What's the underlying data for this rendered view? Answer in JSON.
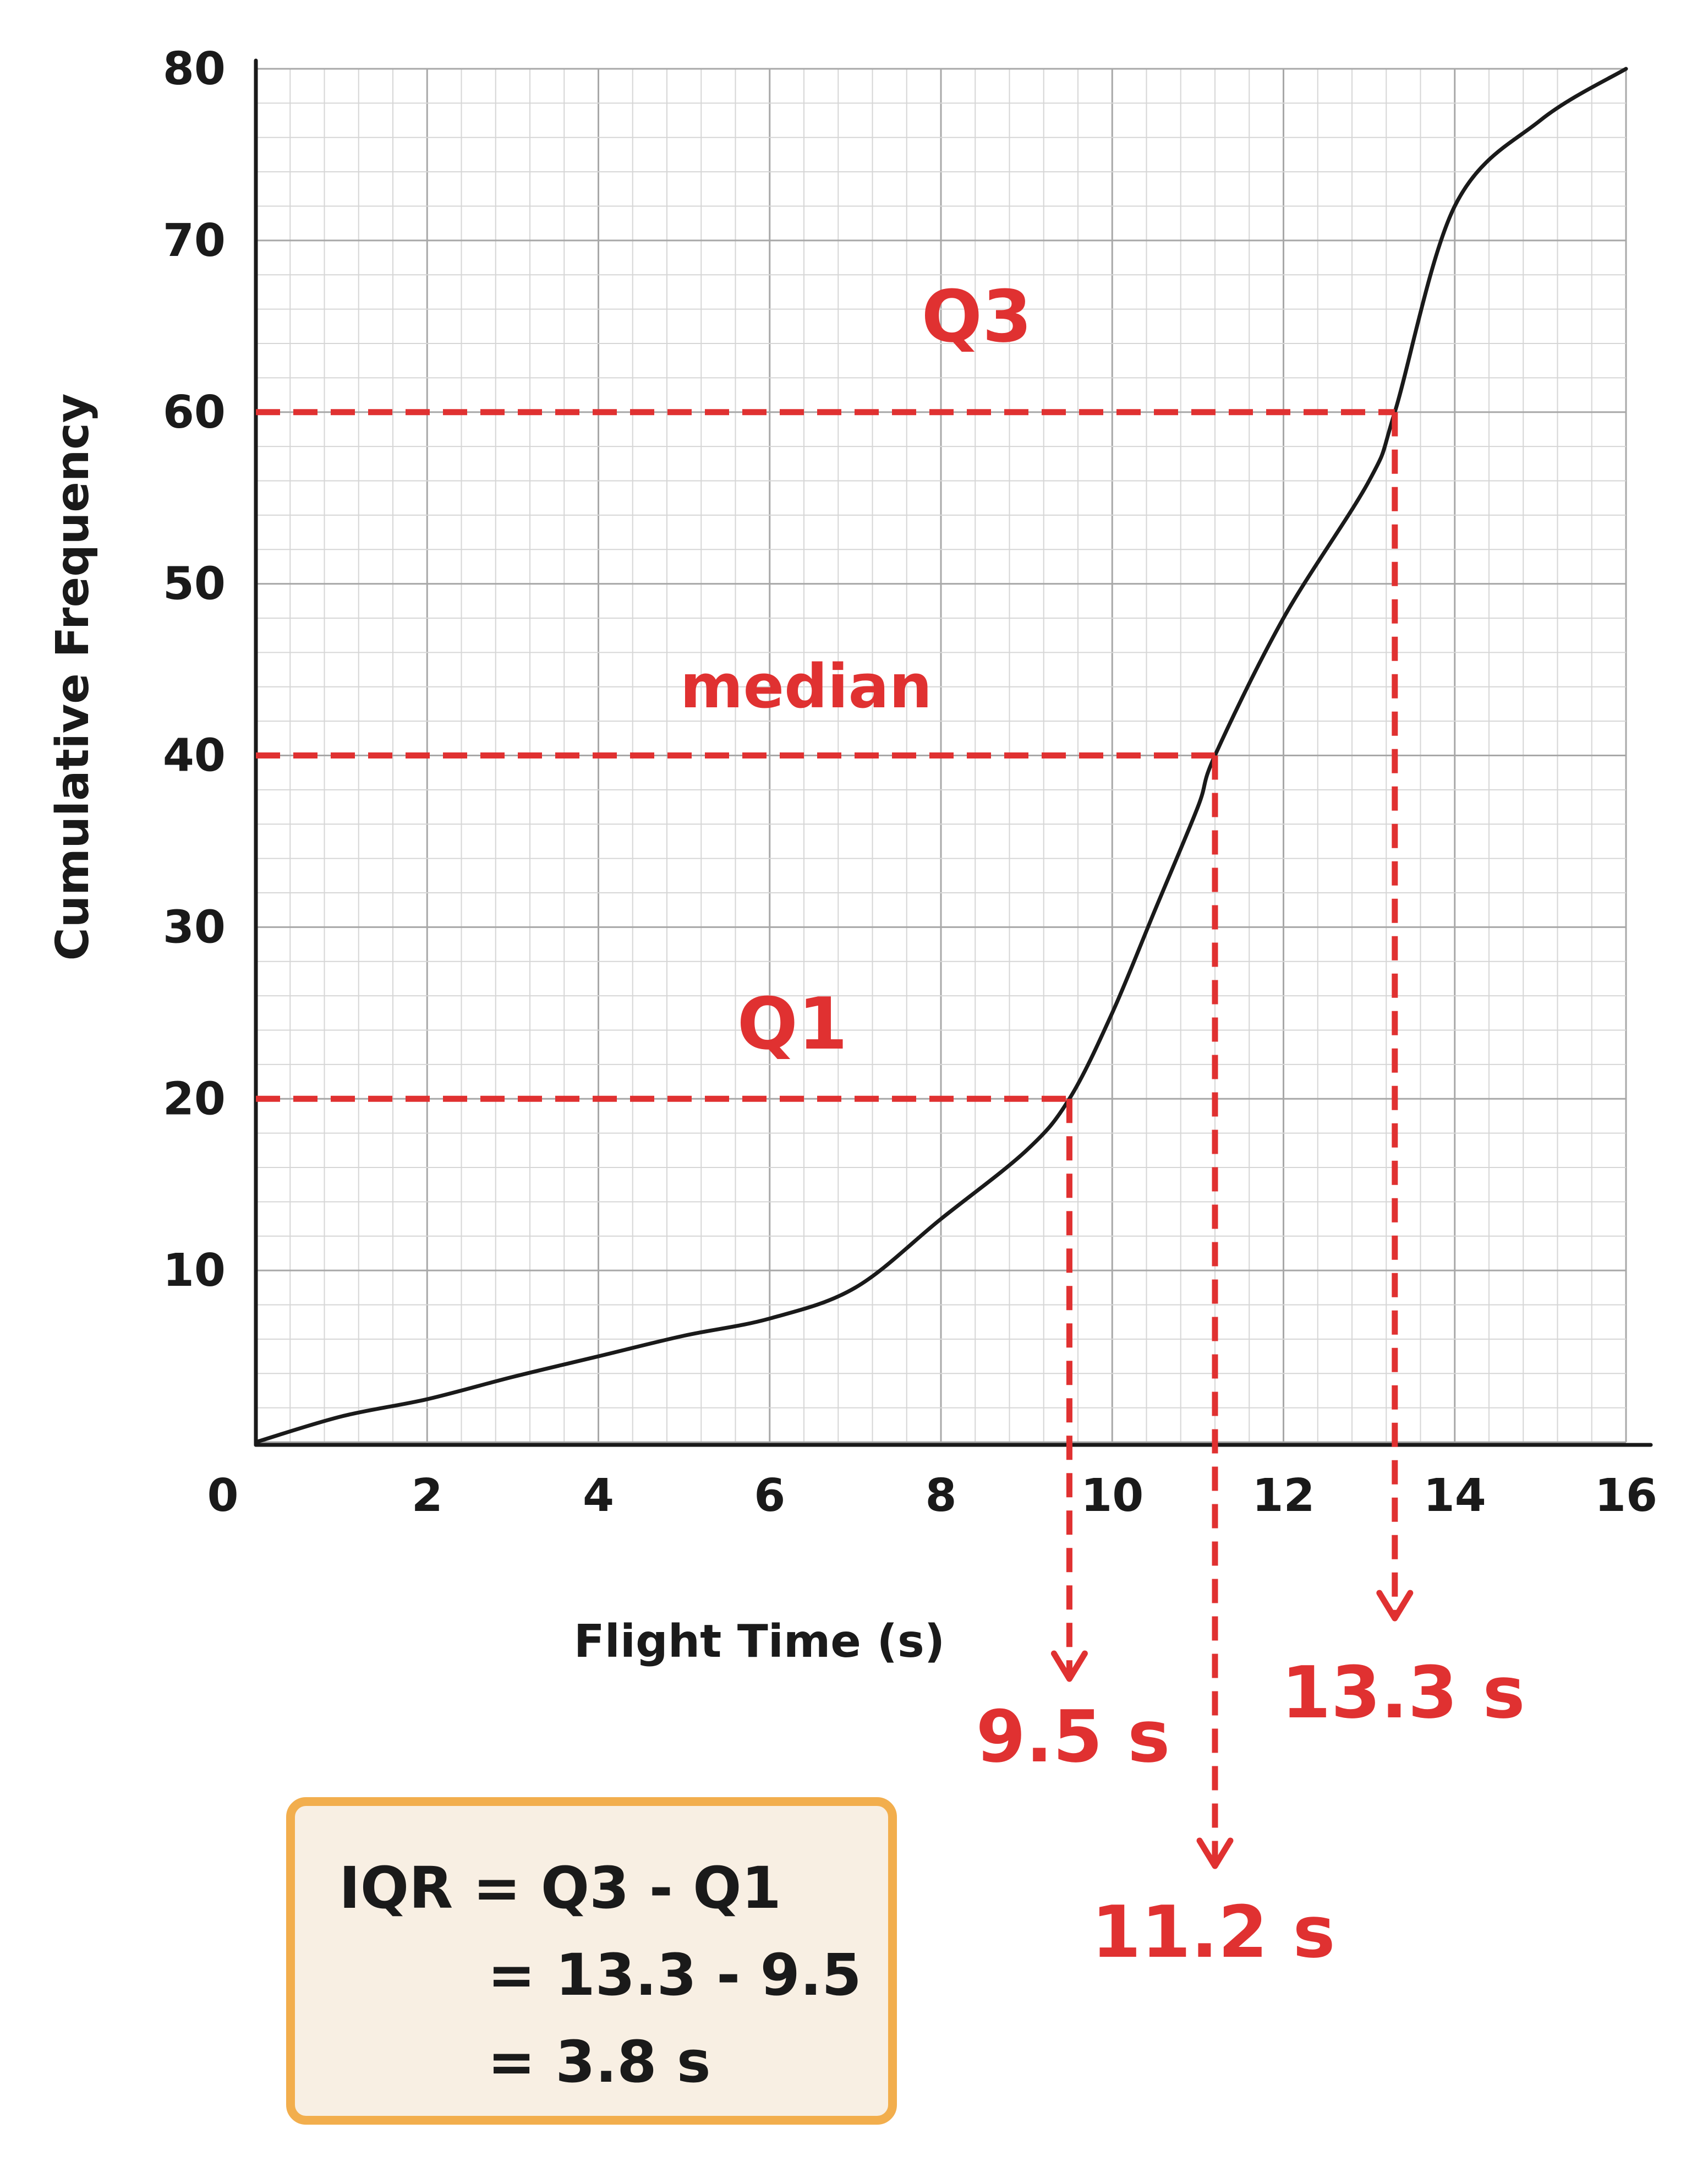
{
  "chart_data": {
    "type": "line",
    "xlabel": "Flight Time (s)",
    "ylabel": "Cumulative Frequency",
    "xlim": [
      0,
      16
    ],
    "ylim": [
      0,
      80
    ],
    "x_ticks": [
      "0",
      "2",
      "4",
      "6",
      "8",
      "10",
      "12",
      "14",
      "16"
    ],
    "y_ticks": [
      "10",
      "20",
      "30",
      "40",
      "50",
      "60",
      "70",
      "80"
    ],
    "grid": true,
    "series": [
      {
        "x": [
          0,
          1,
          2,
          3,
          4,
          5,
          6,
          7,
          8,
          9,
          9.5,
          10,
          10.5,
          11,
          11.2,
          12,
          13,
          13.3,
          14,
          15,
          16
        ],
        "y": [
          0,
          1.5,
          2.5,
          3.8,
          5,
          6.2,
          7.2,
          9,
          13,
          17,
          20,
          25,
          31,
          37,
          40,
          48,
          56,
          60,
          72,
          77,
          80
        ]
      }
    ],
    "annotations": [
      {
        "label": "Q1",
        "y": 20,
        "x": 9.5,
        "value_label": "9.5 s"
      },
      {
        "label": "median",
        "y": 40,
        "x": 11.2,
        "value_label": "11.2 s"
      },
      {
        "label": "Q3",
        "y": 60,
        "x": 13.3,
        "value_label": "13.3 s"
      }
    ]
  },
  "iqr_box": {
    "line1": "IQR = Q3 - Q1",
    "line2": "= 13.3 - 9.5",
    "line3": "= 3.8 s"
  },
  "colors": {
    "annotation": "#e03131",
    "curve": "#1a1a1a",
    "grid_minor": "#d6d6d6",
    "grid_major": "#a8a8a8",
    "box_border": "#f2ae4d",
    "box_fill": "#f8efe3"
  }
}
